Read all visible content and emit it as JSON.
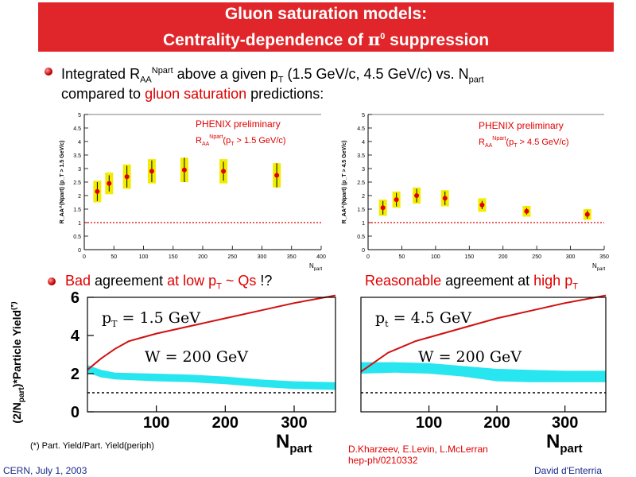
{
  "slide": {
    "title_line1": "Gluon saturation models:",
    "title_line2_pre": "Centrality-dependence of ",
    "title_line2_pi": "π",
    "title_line2_sup": "0",
    "title_line2_post": " suppression",
    "bullet1": {
      "pre": "Integrated R",
      "sub1": "AA",
      "sup1": "Npart",
      "mid": " above a given p",
      "sub2": "T",
      "mid2": " (1.5 GeV/c, 4.5 GeV/c) vs. N",
      "sub3": "part",
      "line2_pre": "compared to ",
      "line2_red": "gluon saturation",
      "line2_post": " predictions:"
    },
    "bullet2": {
      "red1": "Bad",
      "mid": " agreement ",
      "red2": "at low p",
      "sub": "T",
      "red3": " ~ Qs",
      "post": " !?"
    },
    "bullet3": {
      "red1": "Reasonable",
      "mid": " agreement at ",
      "red2": "high p",
      "sub": "T"
    },
    "footnote": "(*) Part. Yield/Part. Yield(periph)",
    "reference_line1": "D.Kharzeev, E.Levin, L.McLerran",
    "reference_line2": "hep-ph/0210332",
    "footer_left": "CERN, July 1, 2003",
    "footer_right": "David d'Enterria",
    "colors": {
      "title_bg": "#e0262a",
      "accent_red": "#e00000",
      "band_yellow": "#f2ec00",
      "band_cyan": "#28e6ef"
    }
  },
  "chart_data": [
    {
      "type": "scatter",
      "label_main": "PHENIX preliminary",
      "label_sub_pre": "R",
      "label_sub_sub": "AA",
      "label_sub_sup": "Npart",
      "label_sub_post": "(p",
      "label_sub_sub2": "T",
      "label_sub_end": " > 1.5 GeV/c)",
      "ylabel": "R_AA^(Npart) (p_T > 1.5 GeV/c)",
      "xlabel": "N",
      "xlabel_sub": "part",
      "xlim": [
        0,
        400
      ],
      "ylim": [
        0,
        5
      ],
      "xticks": [
        "0",
        "50",
        "100",
        "150",
        "200",
        "250",
        "300",
        "350",
        "400"
      ],
      "yticks": [
        "0",
        "0.5",
        "1",
        "1.5",
        "2",
        "2.5",
        "3",
        "3.5",
        "4",
        "4.5",
        "5"
      ],
      "reference_line": 1,
      "points": [
        {
          "x": 22,
          "y": 2.15,
          "err": 0.35,
          "sys": 0.4
        },
        {
          "x": 42,
          "y": 2.45,
          "err": 0.3,
          "sys": 0.4
        },
        {
          "x": 72,
          "y": 2.7,
          "err": 0.4,
          "sys": 0.45
        },
        {
          "x": 114,
          "y": 2.9,
          "err": 0.4,
          "sys": 0.45
        },
        {
          "x": 169,
          "y": 2.95,
          "err": 0.45,
          "sys": 0.45
        },
        {
          "x": 235,
          "y": 2.9,
          "err": 0.35,
          "sys": 0.45
        },
        {
          "x": 325,
          "y": 2.75,
          "err": 0.45,
          "sys": 0.45
        }
      ]
    },
    {
      "type": "scatter",
      "label_main": "PHENIX preliminary",
      "label_sub_pre": "R",
      "label_sub_sub": "AA",
      "label_sub_sup": "Npart",
      "label_sub_post": "(p",
      "label_sub_sub2": "T",
      "label_sub_end": " > 4.5 GeV/c)",
      "ylabel": "R_AA^(Npart) (p_T > 4.5 GeV/c)",
      "xlabel": "N",
      "xlabel_sub": "part",
      "xlim": [
        0,
        350
      ],
      "ylim": [
        0,
        5
      ],
      "xticks": [
        "0",
        "50",
        "100",
        "150",
        "200",
        "250",
        "300",
        "350"
      ],
      "yticks": [
        "0",
        "0.5",
        "1",
        "1.5",
        "2",
        "2.5",
        "3",
        "3.5",
        "4",
        "4.5",
        "5"
      ],
      "reference_line": 1,
      "points": [
        {
          "x": 22,
          "y": 1.55,
          "err": 0.25,
          "sys": 0.3
        },
        {
          "x": 42,
          "y": 1.85,
          "err": 0.25,
          "sys": 0.3
        },
        {
          "x": 72,
          "y": 2.0,
          "err": 0.25,
          "sys": 0.3
        },
        {
          "x": 114,
          "y": 1.9,
          "err": 0.25,
          "sys": 0.3
        },
        {
          "x": 169,
          "y": 1.65,
          "err": 0.15,
          "sys": 0.25
        },
        {
          "x": 235,
          "y": 1.42,
          "err": 0.12,
          "sys": 0.2
        },
        {
          "x": 325,
          "y": 1.3,
          "err": 0.15,
          "sys": 0.2
        }
      ]
    },
    {
      "type": "line",
      "annot_pt": "p",
      "annot_pt_sub": "T",
      "annot_pt_val": " = 1.5 GeV",
      "annot_w": "W = 200 GeV",
      "ylabel": "(2/N",
      "ylabel_sub": "part",
      "ylabel_post": ")*Particle Yield",
      "ylabel_sup": "(*)",
      "xlabel": "N",
      "xlabel_sub": "part",
      "xlim": [
        0,
        360
      ],
      "ylim": [
        0,
        6
      ],
      "xticks": [
        "100",
        "200",
        "300"
      ],
      "yticks": [
        "0",
        "2",
        "4",
        "6"
      ],
      "reference_line": 1,
      "curve": [
        [
          0,
          2.2
        ],
        [
          20,
          2.8
        ],
        [
          40,
          3.3
        ],
        [
          60,
          3.7
        ],
        [
          80,
          3.9
        ],
        [
          100,
          4.1
        ],
        [
          150,
          4.5
        ],
        [
          200,
          4.9
        ],
        [
          250,
          5.3
        ],
        [
          300,
          5.7
        ],
        [
          360,
          6.1
        ]
      ],
      "band_upper": [
        [
          0,
          2.45
        ],
        [
          20,
          2.2
        ],
        [
          40,
          2.05
        ],
        [
          100,
          2.0
        ],
        [
          150,
          1.95
        ],
        [
          200,
          1.85
        ],
        [
          250,
          1.7
        ],
        [
          300,
          1.6
        ],
        [
          360,
          1.55
        ]
      ],
      "band_lower": [
        [
          0,
          2.05
        ],
        [
          20,
          1.8
        ],
        [
          40,
          1.7
        ],
        [
          100,
          1.6
        ],
        [
          150,
          1.55
        ],
        [
          200,
          1.45
        ],
        [
          250,
          1.3
        ],
        [
          300,
          1.2
        ],
        [
          360,
          1.15
        ]
      ]
    },
    {
      "type": "line",
      "annot_pt": "p",
      "annot_pt_sub": "t",
      "annot_pt_val": " = 4.5 GeV",
      "annot_w": "W = 200 GeV",
      "xlabel": "N",
      "xlabel_sub": "part",
      "xlim": [
        0,
        360
      ],
      "ylim": [
        0,
        6
      ],
      "xticks": [
        "100",
        "200",
        "300"
      ],
      "yticks": [],
      "reference_line": 1,
      "curve": [
        [
          0,
          2.1
        ],
        [
          20,
          2.6
        ],
        [
          40,
          3.1
        ],
        [
          60,
          3.4
        ],
        [
          80,
          3.7
        ],
        [
          100,
          3.9
        ],
        [
          150,
          4.4
        ],
        [
          200,
          4.9
        ],
        [
          250,
          5.3
        ],
        [
          300,
          5.7
        ],
        [
          360,
          6.1
        ]
      ],
      "band_upper": [
        [
          0,
          2.6
        ],
        [
          50,
          2.6
        ],
        [
          100,
          2.55
        ],
        [
          150,
          2.4
        ],
        [
          200,
          2.25
        ],
        [
          250,
          2.2
        ],
        [
          300,
          2.15
        ],
        [
          360,
          2.15
        ]
      ],
      "band_lower": [
        [
          0,
          2.0
        ],
        [
          50,
          2.05
        ],
        [
          100,
          2.0
        ],
        [
          150,
          1.85
        ],
        [
          200,
          1.6
        ],
        [
          250,
          1.55
        ],
        [
          300,
          1.55
        ],
        [
          360,
          1.55
        ]
      ]
    }
  ]
}
